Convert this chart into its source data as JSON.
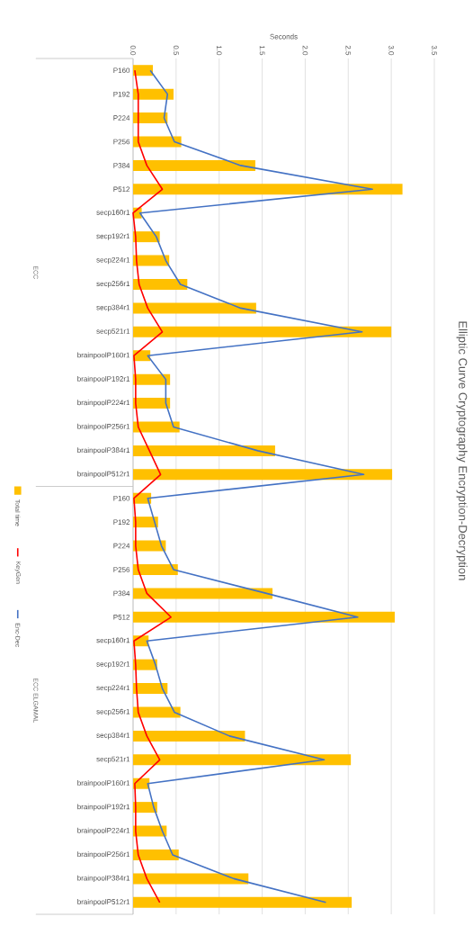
{
  "chart_data": {
    "type": "bar",
    "orientation": "horizontal",
    "title": "Elliptic Curve Cryptography Encryption-Decryption",
    "xlabel": "Seconds",
    "categories": [
      "P160",
      "P192",
      "P224",
      "P256",
      "P384",
      "P512",
      "secp160r1",
      "secp192r1",
      "secp224r1",
      "secp256r1",
      "secp384r1",
      "secp521r1",
      "brainpoolP160r1",
      "brainpoolP192r1",
      "brainpoolP224r1",
      "brainpoolP256r1",
      "brainpoolP384r1",
      "brainpoolP512r1",
      "P160",
      "P192",
      "P224",
      "P256",
      "P384",
      "P512",
      "secp160r1",
      "secp192r1",
      "secp224r1",
      "secp256r1",
      "secp384r1",
      "secp521r1",
      "brainpoolP160r1",
      "brainpoolP192r1",
      "brainpoolP224r1",
      "brainpoolP256r1",
      "brainpoolP384r1",
      "brainpoolP512r1"
    ],
    "series": [
      {
        "name": "Total time",
        "color": "#ffc000",
        "values": [
          0.23,
          0.47,
          0.4,
          0.56,
          1.42,
          3.13,
          0.1,
          0.31,
          0.42,
          0.63,
          1.43,
          3.0,
          0.2,
          0.43,
          0.43,
          0.54,
          1.65,
          3.01,
          0.21,
          0.29,
          0.38,
          0.52,
          1.62,
          3.04,
          0.18,
          0.28,
          0.4,
          0.55,
          1.3,
          2.53,
          0.19,
          0.28,
          0.39,
          0.53,
          1.34,
          2.54
        ]
      },
      {
        "name": "KeyGen",
        "type": "line",
        "color": "#ff0000",
        "values": [
          0.02,
          0.06,
          0.06,
          0.06,
          0.16,
          0.34,
          0.0,
          0.03,
          0.04,
          0.07,
          0.17,
          0.34,
          0.01,
          0.03,
          0.03,
          0.06,
          0.19,
          0.32,
          0.01,
          0.03,
          0.03,
          0.06,
          0.16,
          0.44,
          0.01,
          0.03,
          0.04,
          0.06,
          0.16,
          0.31,
          0.02,
          0.03,
          0.03,
          0.06,
          0.16,
          0.31
        ]
      },
      {
        "name": "Enc-Dec",
        "type": "line",
        "color": "#4472c4",
        "values": [
          0.2,
          0.4,
          0.36,
          0.48,
          1.25,
          2.78,
          0.08,
          0.27,
          0.38,
          0.55,
          1.25,
          2.66,
          0.17,
          0.38,
          0.38,
          0.47,
          1.45,
          2.68,
          0.17,
          0.25,
          0.33,
          0.47,
          1.55,
          2.61,
          0.16,
          0.26,
          0.34,
          0.48,
          1.12,
          2.22,
          0.17,
          0.24,
          0.34,
          0.46,
          1.17,
          2.24
        ]
      }
    ],
    "xlim": [
      0,
      3.5
    ],
    "xticks": [
      {
        "value": 0,
        "label": "0.0"
      },
      0.5,
      {
        "value": 1,
        "label": "1.0"
      },
      1.5,
      {
        "value": 2,
        "label": "2.0"
      },
      2.5,
      {
        "value": 3,
        "label": "3.0"
      },
      3.5
    ],
    "grid": "x",
    "legend": "left",
    "marker": "none",
    "line_style": "solid",
    "annotations": [
      "ECC",
      "ECC ELGAMAL"
    ]
  }
}
